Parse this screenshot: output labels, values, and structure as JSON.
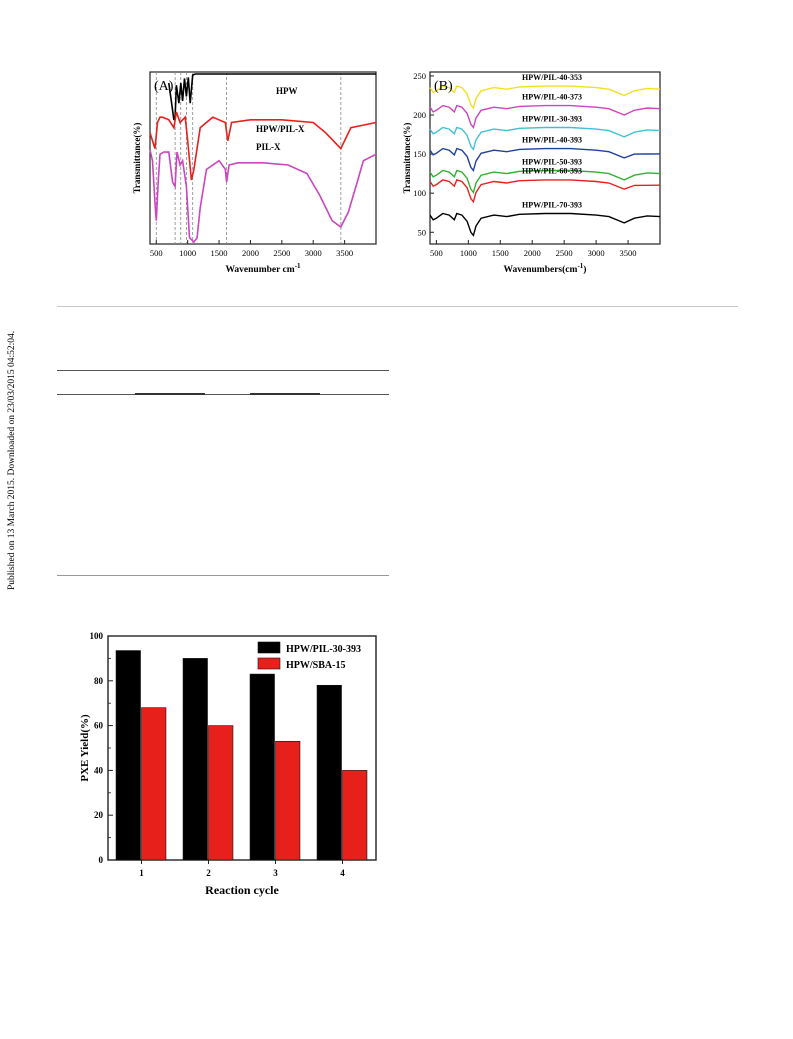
{
  "side_note": "Published on 13 March 2015. Downloaded on 23/03/2015 04:52:04.",
  "chart_data": [
    {
      "type": "line",
      "panel_label": "(A)",
      "xlabel": "Wavenumber cm",
      "xlabel_sup": "-1",
      "ylabel": "Transmittance(%)",
      "xlim": [
        400,
        4000
      ],
      "x_ticks": [
        500,
        1000,
        1500,
        2000,
        2500,
        3000,
        3500
      ],
      "y_ticks": [],
      "reference_lines": [
        500,
        800,
        890,
        980,
        1080,
        1620,
        3440
      ],
      "series": [
        {
          "name": "HPW",
          "color": "#000000",
          "x": [
            700,
            740,
            780,
            800,
            820,
            860,
            890,
            920,
            950,
            980,
            1010,
            1040,
            1080,
            1120,
            1200,
            1500,
            2000,
            2500,
            3000,
            3500,
            4000
          ],
          "y": [
            88,
            72,
            55,
            58,
            86,
            70,
            88,
            72,
            92,
            76,
            93,
            70,
            95,
            96,
            96,
            96,
            96,
            96,
            96,
            96,
            96
          ]
        },
        {
          "name": "HPW/PIL-X",
          "color": "#e8201c",
          "x": [
            400,
            480,
            520,
            560,
            600,
            700,
            780,
            820,
            880,
            960,
            1000,
            1060,
            1100,
            1200,
            1400,
            1600,
            1640,
            1700,
            2000,
            2500,
            3000,
            3200,
            3440,
            3600,
            4000
          ],
          "y": [
            58,
            52,
            62,
            64,
            64,
            63,
            60,
            66,
            62,
            64,
            55,
            40,
            44,
            60,
            64,
            62,
            55,
            62,
            63,
            63,
            62,
            58,
            52,
            60,
            62
          ]
        },
        {
          "name": "PIL-X",
          "color": "#cc44c0",
          "x": [
            400,
            440,
            480,
            500,
            530,
            560,
            620,
            700,
            760,
            800,
            830,
            880,
            920,
            980,
            1030,
            1100,
            1150,
            1200,
            1300,
            1500,
            1600,
            1620,
            1660,
            1800,
            2200,
            2600,
            2900,
            3100,
            3300,
            3440,
            3560,
            3700,
            3800,
            4000
          ],
          "y": [
            45,
            40,
            20,
            12,
            30,
            43,
            44,
            44,
            30,
            28,
            44,
            38,
            40,
            28,
            4,
            2,
            4,
            18,
            36,
            40,
            36,
            30,
            38,
            39,
            39,
            38,
            34,
            24,
            12,
            9,
            16,
            30,
            40,
            43
          ]
        }
      ]
    },
    {
      "type": "line",
      "panel_label": "(B)",
      "xlabel": "Wavenumbers(cm",
      "xlabel_sup": "-1",
      "xlabel_tail": ")",
      "ylabel": "Transmittance(%)",
      "xlim": [
        400,
        4000
      ],
      "ylim": [
        35,
        255
      ],
      "x_ticks": [
        500,
        1000,
        1500,
        2000,
        2500,
        3000,
        3500
      ],
      "y_ticks": [
        50,
        100,
        150,
        200,
        250
      ],
      "series": [
        {
          "name": "HPW/PIL-40-353",
          "color": "#f0e020",
          "offset": 235
        },
        {
          "name": "HPW/PIL-40-373",
          "color": "#cc44c0",
          "offset": 210
        },
        {
          "name": "HPW/PIL-30-393",
          "color": "#40c0d8",
          "offset": 182
        },
        {
          "name": "HPW/PIL-40-393",
          "color": "#2040a0",
          "offset": 155
        },
        {
          "name": "HPW/PIL-50-393",
          "color": "#30b030",
          "offset": 127
        },
        {
          "name": "HPW/PIL-60-393",
          "color": "#e8201c",
          "offset": 115
        },
        {
          "name": "HPW/PIL-70-393",
          "color": "#000000",
          "offset": 72
        }
      ]
    },
    {
      "type": "bar",
      "categories": [
        "1",
        "2",
        "3",
        "4"
      ],
      "series": [
        {
          "name": "HPW/PIL-30-393",
          "color": "#000000",
          "values": [
            93.5,
            90,
            83,
            78
          ]
        },
        {
          "name": "HPW/SBA-15",
          "color": "#e8201c",
          "values": [
            68,
            60,
            53,
            40
          ]
        }
      ],
      "xlabel": "Reaction cycle",
      "ylabel": "PXE Yield(%)",
      "ylim": [
        0,
        100
      ],
      "y_ticks": [
        0,
        20,
        40,
        60,
        80,
        100
      ],
      "legend": "top-right"
    }
  ]
}
